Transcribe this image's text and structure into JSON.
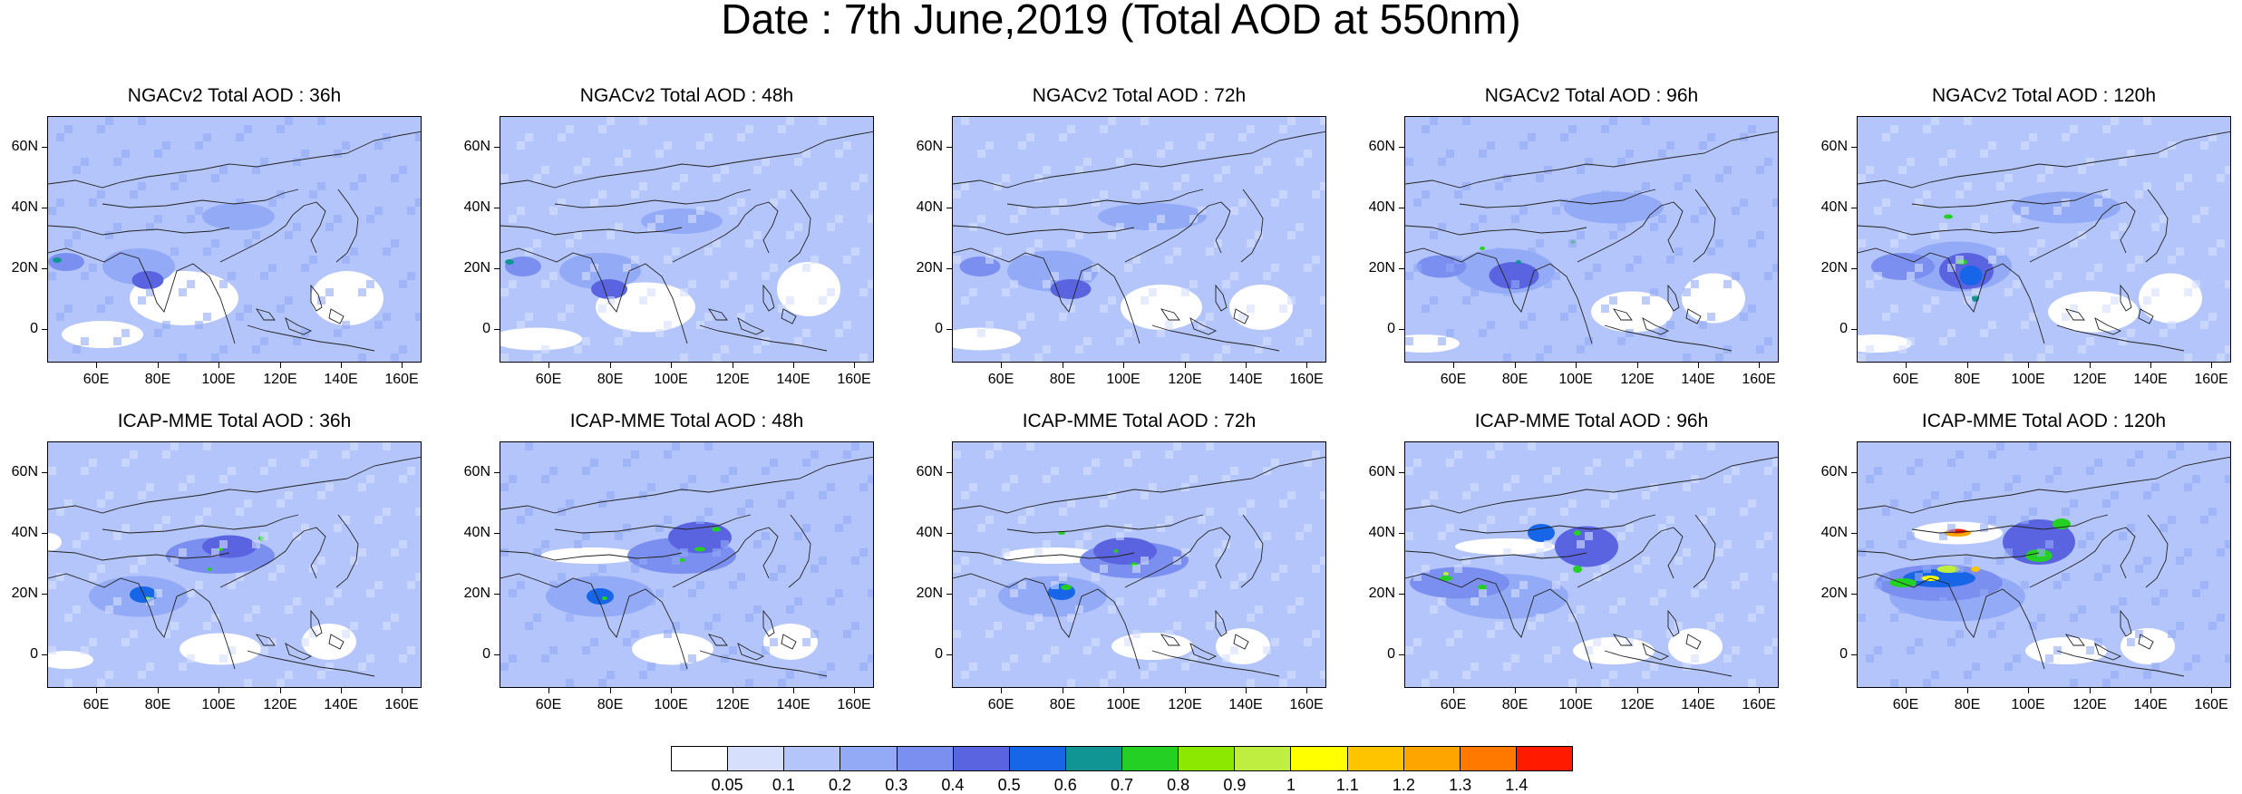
{
  "figure": {
    "title": "Date : 7th June,2019 (Total AOD at 550nm)"
  },
  "axes": {
    "lat_ticks": [
      "60N",
      "40N",
      "20N",
      "0"
    ],
    "lon_ticks": [
      "60E",
      "80E",
      "100E",
      "120E",
      "140E",
      "160E"
    ]
  },
  "panels": [
    {
      "title": "NGACv2 Total AOD : 36h",
      "model": "NGACv2",
      "lead": "36h"
    },
    {
      "title": "NGACv2 Total AOD : 48h",
      "model": "NGACv2",
      "lead": "48h"
    },
    {
      "title": "NGACv2 Total AOD : 72h",
      "model": "NGACv2",
      "lead": "72h"
    },
    {
      "title": "NGACv2 Total AOD : 96h",
      "model": "NGACv2",
      "lead": "96h"
    },
    {
      "title": "NGACv2 Total AOD : 120h",
      "model": "NGACv2",
      "lead": "120h"
    },
    {
      "title": "ICAP-MME Total AOD : 36h",
      "model": "ICAP-MME",
      "lead": "36h"
    },
    {
      "title": "ICAP-MME Total AOD : 48h",
      "model": "ICAP-MME",
      "lead": "48h"
    },
    {
      "title": "ICAP-MME Total AOD : 72h",
      "model": "ICAP-MME",
      "lead": "72h"
    },
    {
      "title": "ICAP-MME Total AOD : 96h",
      "model": "ICAP-MME",
      "lead": "96h"
    },
    {
      "title": "ICAP-MME Total AOD : 120h",
      "model": "ICAP-MME",
      "lead": "120h"
    }
  ],
  "colorbar": {
    "labels": [
      "0.05",
      "0.1",
      "0.2",
      "0.3",
      "0.4",
      "0.5",
      "0.6",
      "0.7",
      "0.8",
      "0.9",
      "1",
      "1.1",
      "1.2",
      "1.3",
      "1.4"
    ],
    "colors": [
      "#ffffff",
      "#d6e0fd",
      "#b3c5fa",
      "#93aaf6",
      "#7b8ff0",
      "#5a64e0",
      "#1766e8",
      "#119494",
      "#24d024",
      "#8de800",
      "#bfee40",
      "#ffff00",
      "#ffc400",
      "#ffa500",
      "#ff7800",
      "#ff1a00"
    ]
  }
}
